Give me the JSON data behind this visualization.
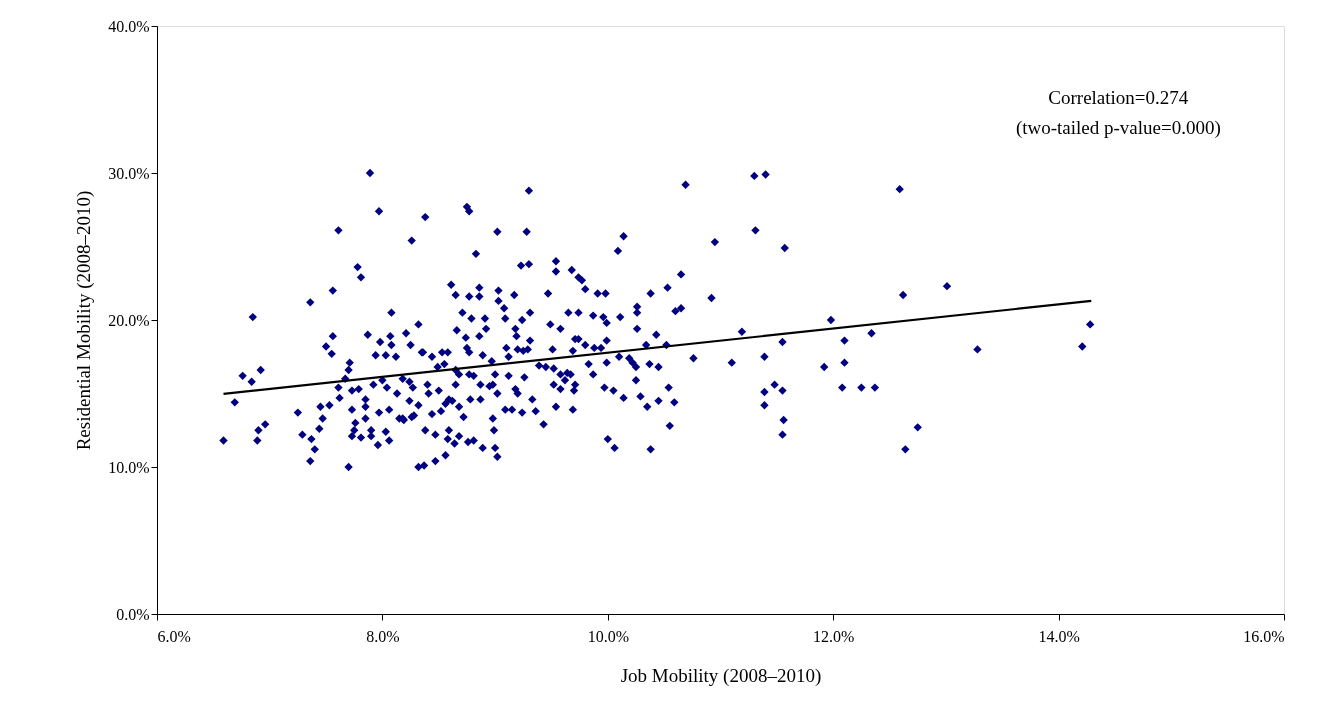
{
  "chart_data": {
    "type": "scatter",
    "xlabel": "Job Mobility (2008–2010)",
    "ylabel": "Residential Mobility (2008–2010)",
    "annotations": [
      "Correlation=0.274",
      "(two-tailed p-value=0.000)"
    ],
    "xlim": [
      6,
      16
    ],
    "ylim": [
      0,
      40
    ],
    "xticks": [
      {
        "value": 6,
        "label": "6.0%"
      },
      {
        "value": 8,
        "label": "8.0%"
      },
      {
        "value": 10,
        "label": "10.0%"
      },
      {
        "value": 12,
        "label": "12.0%"
      },
      {
        "value": 14,
        "label": "14.0%"
      },
      {
        "value": 16,
        "label": "16.0%"
      }
    ],
    "yticks": [
      {
        "value": 0,
        "label": "0.0%"
      },
      {
        "value": 10,
        "label": "10.0%"
      },
      {
        "value": 20,
        "label": "20.0%"
      },
      {
        "value": 30,
        "label": "30.0%"
      },
      {
        "value": 40,
        "label": "40.0%"
      }
    ],
    "grid": false,
    "legend": false,
    "marker": "diamond",
    "series": [
      {
        "type": "scatter",
        "color": "#000080",
        "x": [
          10.69,
          11.3,
          11.4,
          11.31,
          10.95,
          11.57,
          12.59,
          12.62,
          13.01,
          10.65,
          10.53,
          10.38,
          10.92,
          10.6,
          10.65,
          10.43,
          11.19,
          11.98,
          12.34,
          12.1,
          10.52,
          11.55,
          10.76,
          11.1,
          11.39,
          12.1,
          11.92,
          10.45,
          10.37,
          10.54,
          11.48,
          11.39,
          11.55,
          12.08,
          12.25,
          12.37,
          10.45,
          10.59,
          11.39,
          10.55,
          11.56,
          11.55,
          10.38,
          12.75,
          12.64,
          13.28,
          14.28,
          14.21,
          9.3,
          8.75,
          8.77,
          8.38,
          8.26,
          9.02,
          9.28,
          8.83,
          10.14,
          10.09,
          9.23,
          9.3,
          9.54,
          9.54,
          9.68,
          9.74,
          9.77,
          9.8,
          8.61,
          8.65,
          8.86,
          8.77,
          8.86,
          9.03,
          9.03,
          9.17,
          9.47,
          9.91,
          9.98,
          10.26,
          9.08,
          9.31,
          9.65,
          9.74,
          9.87,
          9.96,
          9.99,
          10.11,
          10.26,
          10.26,
          8.71,
          8.79,
          8.91,
          9.09,
          9.24,
          9.49,
          9.58,
          8.32,
          8.21,
          8.66,
          8.92,
          9.18,
          9.19,
          8.74,
          8.86,
          8.25,
          8.36,
          8.44,
          8.53,
          8.58,
          8.75,
          8.77,
          8.89,
          8.97,
          9.1,
          9.12,
          9.2,
          9.25,
          9.29,
          9.31,
          9.51,
          9.69,
          9.71,
          9.74,
          9.8,
          9.88,
          9.94,
          9.99,
          9.99,
          10.1,
          10.19,
          10.22,
          10.34,
          9.83,
          9.87,
          10.25,
          10.25,
          9.97,
          10.05,
          10.14,
          10.29,
          10.35,
          10.0,
          10.06,
          9.39,
          9.45,
          9.52,
          9.58,
          9.64,
          9.62,
          9.67,
          9.71,
          9.52,
          9.58,
          9.7,
          9.54,
          9.69,
          9.43,
          9.33,
          9.36,
          9.26,
          9.18,
          9.2,
          9.12,
          9.0,
          8.98,
          9.09,
          9.15,
          9.24,
          8.98,
          8.99,
          9.02,
          9.0,
          8.89,
          8.81,
          8.76,
          8.64,
          8.68,
          8.56,
          8.47,
          8.32,
          8.37,
          8.72,
          8.68,
          8.87,
          8.78,
          8.95,
          8.87,
          9.02,
          8.81,
          8.77,
          8.68,
          8.65,
          8.59,
          8.5,
          8.52,
          8.44,
          8.38,
          8.47,
          8.59,
          8.58,
          8.56,
          8.62,
          8.28,
          8.18,
          8.32,
          8.24,
          8.4,
          8.41,
          8.24,
          8.27,
          8.55,
          8.49,
          8.65,
          7.89,
          7.97,
          7.61,
          7.78,
          7.81,
          7.56,
          7.36,
          6.85,
          8.08,
          7.56,
          7.87,
          8.07,
          7.5,
          7.55,
          7.98,
          8.08,
          7.71,
          7.7,
          7.94,
          8.03,
          8.12,
          8.35,
          6.76,
          6.84,
          6.92,
          6.69,
          6.59,
          6.96,
          6.9,
          6.89,
          7.25,
          7.29,
          7.37,
          7.4,
          7.36,
          7.44,
          7.47,
          7.45,
          7.53,
          7.61,
          7.62,
          7.67,
          7.73,
          7.79,
          7.73,
          7.76,
          7.75,
          7.73,
          7.81,
          7.7,
          7.85,
          7.85,
          7.85,
          7.9,
          7.9,
          7.96,
          7.97,
          7.92,
          8.0,
          8.04,
          8.06,
          8.03,
          8.06,
          8.15,
          8.19,
          8.13,
          8.18,
          8.26
        ],
        "values": [
          29.2,
          29.8,
          29.9,
          26.1,
          25.3,
          24.9,
          28.9,
          21.7,
          22.3,
          23.1,
          22.2,
          21.8,
          21.5,
          20.6,
          20.8,
          19.0,
          19.2,
          20.0,
          19.1,
          18.6,
          18.3,
          18.5,
          17.4,
          17.1,
          17.5,
          17.1,
          16.8,
          16.8,
          17.0,
          15.4,
          15.6,
          15.1,
          15.2,
          15.4,
          15.4,
          15.4,
          14.5,
          14.4,
          14.2,
          12.8,
          13.2,
          12.2,
          11.2,
          12.7,
          11.2,
          18.0,
          19.7,
          18.2,
          28.8,
          27.7,
          27.4,
          27.0,
          25.4,
          26.0,
          26.0,
          24.5,
          25.7,
          24.7,
          23.7,
          23.8,
          24.0,
          23.3,
          23.4,
          22.9,
          22.7,
          22.1,
          22.4,
          21.7,
          22.2,
          21.6,
          21.6,
          22.0,
          21.3,
          21.7,
          21.8,
          21.8,
          21.8,
          20.9,
          20.8,
          20.5,
          20.5,
          20.5,
          20.3,
          20.2,
          19.8,
          20.2,
          20.5,
          19.4,
          20.5,
          20.1,
          20.1,
          20.1,
          20.0,
          19.7,
          19.4,
          19.7,
          19.1,
          19.3,
          19.4,
          19.4,
          18.9,
          18.8,
          18.9,
          18.3,
          17.8,
          17.5,
          17.8,
          17.8,
          18.1,
          17.8,
          17.6,
          17.2,
          18.1,
          17.5,
          18.0,
          17.9,
          18.0,
          18.6,
          18.0,
          17.9,
          18.7,
          18.7,
          18.3,
          18.1,
          18.1,
          18.6,
          17.1,
          17.5,
          17.4,
          17.1,
          18.3,
          17.0,
          16.3,
          16.8,
          15.9,
          15.4,
          15.2,
          14.7,
          14.8,
          14.1,
          11.9,
          11.3,
          16.9,
          16.8,
          16.7,
          16.3,
          16.4,
          15.9,
          16.3,
          15.6,
          15.6,
          15.3,
          15.2,
          14.1,
          13.9,
          12.9,
          14.6,
          13.8,
          16.1,
          15.3,
          15.0,
          16.2,
          16.3,
          15.6,
          13.9,
          13.9,
          13.7,
          13.3,
          12.5,
          10.7,
          11.3,
          11.3,
          11.8,
          11.7,
          11.6,
          12.1,
          10.8,
          10.4,
          10.0,
          10.1,
          13.4,
          14.1,
          14.6,
          14.6,
          15.5,
          15.6,
          15.0,
          16.2,
          16.3,
          16.3,
          15.6,
          14.6,
          15.2,
          13.8,
          13.6,
          12.5,
          12.2,
          12.5,
          11.9,
          14.3,
          14.5,
          13.5,
          13.3,
          14.2,
          14.5,
          15.6,
          15.0,
          15.8,
          15.4,
          17.0,
          16.8,
          16.6,
          30.0,
          27.4,
          26.1,
          23.6,
          22.9,
          22.0,
          21.2,
          20.2,
          20.5,
          18.9,
          19.0,
          18.9,
          18.2,
          17.7,
          18.5,
          18.3,
          17.1,
          16.6,
          17.6,
          17.6,
          17.5,
          17.8,
          16.2,
          15.8,
          16.6,
          14.4,
          11.8,
          12.9,
          12.5,
          11.8,
          13.7,
          12.2,
          11.9,
          11.2,
          10.4,
          12.6,
          13.3,
          14.1,
          14.2,
          15.4,
          14.7,
          16.0,
          15.2,
          15.3,
          13.9,
          13.0,
          12.5,
          12.1,
          12.0,
          10.0,
          13.3,
          14.1,
          14.6,
          12.5,
          12.1,
          11.5,
          13.7,
          15.6,
          15.9,
          15.4,
          13.9,
          12.4,
          11.8,
          13.3,
          13.2,
          15.0,
          16.0,
          13.4
        ]
      },
      {
        "type": "line",
        "color": "#000000",
        "marker": "none",
        "line_style": "solid",
        "x": [
          6.59,
          14.29
        ],
        "values": [
          14.97,
          21.3
        ]
      }
    ]
  }
}
